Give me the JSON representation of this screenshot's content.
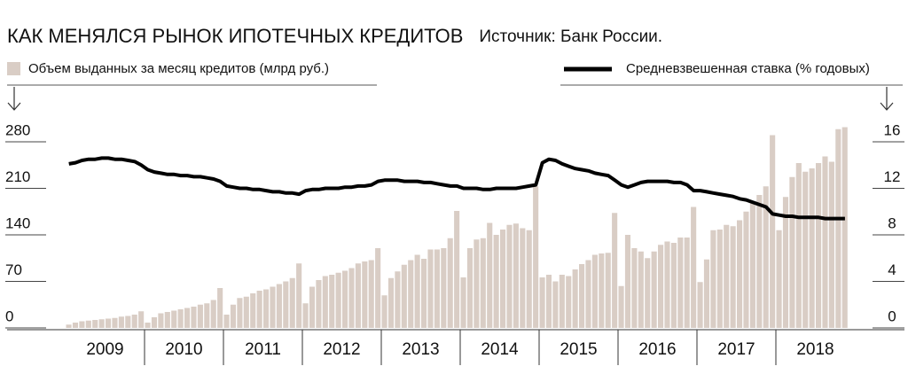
{
  "chart_data": {
    "type": "bar-line",
    "title": "КАК МЕНЯЛСЯ РЫНОК ИПОТЕЧНЫХ КРЕДИТОВ",
    "source": "Источник: Банк России.",
    "categories": [
      "2009",
      "2010",
      "2011",
      "2012",
      "2013",
      "2014",
      "2015",
      "2016",
      "2017",
      "2018"
    ],
    "ylim": [
      0,
      280
    ],
    "yticks": [
      0,
      70,
      140,
      210,
      280
    ],
    "y2lim": [
      0,
      16
    ],
    "y2ticks": [
      0,
      4,
      8,
      12,
      16
    ],
    "series": [
      {
        "name": "Объем выданных за месяц кредитов (млрд руб.)",
        "type": "bar",
        "color": "#d9cdc5",
        "values": [
          [
            5,
            8,
            10,
            11,
            12,
            13,
            14,
            15,
            17,
            18,
            20,
            25
          ],
          [
            8,
            16,
            22,
            24,
            26,
            28,
            30,
            32,
            35,
            37,
            42,
            60
          ],
          [
            20,
            35,
            45,
            47,
            52,
            56,
            58,
            62,
            66,
            70,
            75,
            97
          ],
          [
            37,
            62,
            72,
            78,
            80,
            83,
            86,
            90,
            97,
            100,
            102,
            120
          ],
          [
            49,
            75,
            85,
            95,
            102,
            110,
            104,
            118,
            118,
            120,
            135,
            176
          ],
          [
            76,
            120,
            133,
            135,
            158,
            140,
            148,
            155,
            157,
            150,
            147,
            213
          ],
          [
            76,
            80,
            70,
            80,
            78,
            88,
            96,
            102,
            110,
            112,
            113,
            173
          ],
          [
            63,
            140,
            120,
            115,
            105,
            115,
            125,
            130,
            128,
            136,
            136,
            182
          ],
          [
            69,
            103,
            147,
            148,
            155,
            153,
            162,
            175,
            188,
            200,
            213,
            290
          ],
          [
            147,
            197,
            227,
            248,
            235,
            240,
            248,
            258,
            250,
            299,
            302
          ]
        ]
      },
      {
        "name": "Средневзвешенная ставка (% годовых)",
        "type": "line",
        "axis": "y2",
        "color": "#000000",
        "values": [
          [
            14.1,
            14.2,
            14.4,
            14.5,
            14.5,
            14.6,
            14.6,
            14.5,
            14.5,
            14.4,
            14.3,
            14.0
          ],
          [
            13.6,
            13.4,
            13.3,
            13.2,
            13.2,
            13.1,
            13.1,
            13.0,
            13.0,
            12.9,
            12.8,
            12.6
          ],
          [
            12.2,
            12.1,
            12.0,
            12.0,
            11.9,
            11.9,
            11.8,
            11.7,
            11.7,
            11.6,
            11.6,
            11.5
          ],
          [
            11.8,
            11.9,
            11.9,
            12.0,
            12.0,
            12.0,
            12.1,
            12.1,
            12.2,
            12.2,
            12.3,
            12.6
          ],
          [
            12.7,
            12.7,
            12.7,
            12.6,
            12.6,
            12.6,
            12.5,
            12.5,
            12.4,
            12.3,
            12.2,
            12.2
          ],
          [
            12.0,
            12.0,
            12.0,
            11.9,
            11.9,
            12.0,
            12.0,
            12.0,
            12.0,
            12.1,
            12.2,
            12.3
          ],
          [
            14.2,
            14.5,
            14.4,
            14.1,
            13.9,
            13.7,
            13.6,
            13.5,
            13.3,
            13.2,
            13.1,
            12.7
          ],
          [
            12.3,
            12.1,
            12.3,
            12.5,
            12.6,
            12.6,
            12.6,
            12.6,
            12.5,
            12.5,
            12.3,
            11.8
          ],
          [
            11.8,
            11.7,
            11.6,
            11.5,
            11.4,
            11.3,
            11.1,
            11.0,
            10.8,
            10.6,
            10.4,
            9.8
          ],
          [
            9.7,
            9.6,
            9.6,
            9.5,
            9.5,
            9.5,
            9.5,
            9.4,
            9.4,
            9.4,
            9.4
          ]
        ]
      }
    ]
  }
}
